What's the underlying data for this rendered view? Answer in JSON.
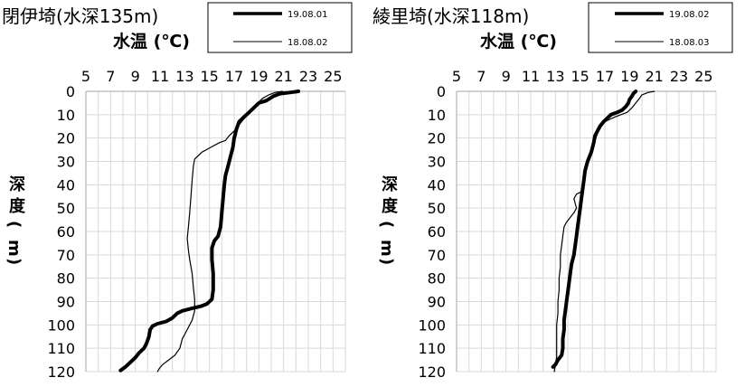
{
  "chart_data": [
    {
      "type": "line",
      "title": "閉伊埼(水深135m)",
      "xlabel": "水温 (℃)",
      "ylabel": "深度(m)",
      "xlim": [
        5,
        26
      ],
      "ylim": [
        0,
        120
      ],
      "y_reversed": true,
      "x_ticks": [
        5,
        7,
        9,
        11,
        13,
        15,
        17,
        19,
        21,
        23,
        25
      ],
      "y_ticks": [
        0,
        10,
        20,
        30,
        40,
        50,
        60,
        70,
        80,
        90,
        100,
        110,
        120
      ],
      "grid": true,
      "legend_position": "top-right",
      "series": [
        {
          "name": "19.08.01",
          "style": "thick",
          "points": [
            [
              22.2,
              0
            ],
            [
              21.5,
              0.5
            ],
            [
              20.7,
              1
            ],
            [
              20.2,
              2
            ],
            [
              19.9,
              3
            ],
            [
              19.6,
              4
            ],
            [
              19.0,
              5
            ],
            [
              18.6,
              7
            ],
            [
              18.2,
              9
            ],
            [
              17.8,
              11
            ],
            [
              17.4,
              13
            ],
            [
              17.2,
              16
            ],
            [
              17.0,
              20
            ],
            [
              16.9,
              24
            ],
            [
              16.7,
              28
            ],
            [
              16.5,
              32
            ],
            [
              16.3,
              36
            ],
            [
              16.2,
              40
            ],
            [
              16.1,
              46
            ],
            [
              16.0,
              52
            ],
            [
              15.9,
              58
            ],
            [
              15.7,
              62
            ],
            [
              15.4,
              64
            ],
            [
              15.2,
              67
            ],
            [
              15.2,
              72
            ],
            [
              15.3,
              78
            ],
            [
              15.3,
              85
            ],
            [
              15.2,
              89
            ],
            [
              14.8,
              91
            ],
            [
              14.3,
              92
            ],
            [
              13.5,
              93
            ],
            [
              12.8,
              94
            ],
            [
              12.4,
              95
            ],
            [
              12.0,
              97
            ],
            [
              11.5,
              98.5
            ],
            [
              10.8,
              99.5
            ],
            [
              10.4,
              100.5
            ],
            [
              10.2,
              102
            ],
            [
              10.1,
              105
            ],
            [
              9.9,
              108
            ],
            [
              9.7,
              110
            ],
            [
              9.3,
              112
            ],
            [
              9.0,
              114
            ],
            [
              8.6,
              116
            ],
            [
              8.2,
              118
            ],
            [
              7.8,
              119.5
            ]
          ]
        },
        {
          "name": "18.08.02",
          "style": "thin",
          "points": [
            [
              20.9,
              0
            ],
            [
              20.3,
              0.5
            ],
            [
              19.8,
              1.5
            ],
            [
              19.3,
              3
            ],
            [
              18.9,
              5
            ],
            [
              18.5,
              7
            ],
            [
              18.2,
              9
            ],
            [
              17.9,
              11
            ],
            [
              17.6,
              13
            ],
            [
              17.3,
              15
            ],
            [
              17.0,
              17
            ],
            [
              16.6,
              19
            ],
            [
              16.3,
              21
            ],
            [
              15.8,
              22
            ],
            [
              15.1,
              24
            ],
            [
              14.4,
              26
            ],
            [
              14.1,
              27.5
            ],
            [
              13.8,
              29
            ],
            [
              13.7,
              32
            ],
            [
              13.6,
              38
            ],
            [
              13.5,
              45
            ],
            [
              13.4,
              52
            ],
            [
              13.3,
              58
            ],
            [
              13.2,
              63
            ],
            [
              13.3,
              68
            ],
            [
              13.4,
              72
            ],
            [
              13.6,
              78
            ],
            [
              13.7,
              84
            ],
            [
              13.8,
              89
            ],
            [
              13.8,
              94
            ],
            [
              13.6,
              98
            ],
            [
              13.4,
              100
            ],
            [
              13.1,
              103
            ],
            [
              12.8,
              106
            ],
            [
              12.6,
              110
            ],
            [
              12.2,
              113
            ],
            [
              11.7,
              115
            ],
            [
              11.2,
              117
            ],
            [
              10.9,
              119
            ],
            [
              10.8,
              120
            ]
          ]
        }
      ]
    },
    {
      "type": "line",
      "title": "綾里埼(水深118m)",
      "xlabel": "水温 (℃)",
      "ylabel": "深度(m)",
      "xlim": [
        5,
        26
      ],
      "ylim": [
        0,
        120
      ],
      "y_reversed": true,
      "x_ticks": [
        5,
        7,
        9,
        11,
        13,
        15,
        17,
        19,
        21,
        23,
        25
      ],
      "y_ticks": [
        0,
        10,
        20,
        30,
        40,
        50,
        60,
        70,
        80,
        90,
        100,
        110,
        120
      ],
      "grid": true,
      "legend_position": "top-right",
      "series": [
        {
          "name": "19.08.02",
          "style": "thick",
          "points": [
            [
              19.5,
              0
            ],
            [
              19.3,
              1
            ],
            [
              19.2,
              2
            ],
            [
              19.0,
              3.5
            ],
            [
              18.9,
              5
            ],
            [
              18.7,
              6.5
            ],
            [
              18.4,
              8
            ],
            [
              18.0,
              9
            ],
            [
              17.5,
              10
            ],
            [
              17.2,
              11.5
            ],
            [
              16.9,
              13
            ],
            [
              16.6,
              15
            ],
            [
              16.4,
              17
            ],
            [
              16.2,
              19
            ],
            [
              16.1,
              22
            ],
            [
              15.9,
              26
            ],
            [
              15.6,
              30
            ],
            [
              15.4,
              34
            ],
            [
              15.3,
              38
            ],
            [
              15.2,
              42
            ],
            [
              15.1,
              46
            ],
            [
              15.0,
              50
            ],
            [
              14.9,
              54
            ],
            [
              14.8,
              58
            ],
            [
              14.7,
              62
            ],
            [
              14.6,
              66
            ],
            [
              14.5,
              70
            ],
            [
              14.3,
              74
            ],
            [
              14.2,
              78
            ],
            [
              14.1,
              82
            ],
            [
              14.0,
              86
            ],
            [
              13.9,
              90
            ],
            [
              13.8,
              94
            ],
            [
              13.7,
              98
            ],
            [
              13.7,
              102
            ],
            [
              13.6,
              106
            ],
            [
              13.6,
              110
            ],
            [
              13.5,
              113
            ],
            [
              13.2,
              115
            ],
            [
              13.0,
              117
            ],
            [
              12.8,
              118
            ]
          ]
        },
        {
          "name": "18.08.03",
          "style": "thin",
          "points": [
            [
              21.0,
              0
            ],
            [
              20.5,
              0.5
            ],
            [
              20.0,
              1.5
            ],
            [
              19.8,
              3
            ],
            [
              19.5,
              5
            ],
            [
              19.2,
              7
            ],
            [
              18.8,
              9
            ],
            [
              18.3,
              10
            ],
            [
              17.8,
              11
            ],
            [
              17.4,
              12
            ],
            [
              17.0,
              13
            ],
            [
              16.7,
              15
            ],
            [
              16.4,
              18
            ],
            [
              16.2,
              21
            ],
            [
              16.0,
              24
            ],
            [
              15.9,
              26
            ],
            [
              15.7,
              29
            ],
            [
              15.5,
              33
            ],
            [
              15.3,
              37
            ],
            [
              15.2,
              40
            ],
            [
              15.1,
              43
            ],
            [
              14.7,
              44
            ],
            [
              14.5,
              46
            ],
            [
              14.6,
              48
            ],
            [
              14.7,
              50
            ],
            [
              14.5,
              52
            ],
            [
              14.2,
              54
            ],
            [
              13.9,
              56
            ],
            [
              13.7,
              58
            ],
            [
              13.6,
              62
            ],
            [
              13.5,
              66
            ],
            [
              13.4,
              70
            ],
            [
              13.4,
              75
            ],
            [
              13.3,
              80
            ],
            [
              13.3,
              85
            ],
            [
              13.2,
              90
            ],
            [
              13.2,
              95
            ],
            [
              13.1,
              100
            ],
            [
              13.1,
              105
            ],
            [
              13.1,
              110
            ],
            [
              13.1,
              114
            ],
            [
              13.0,
              117
            ],
            [
              12.9,
              120
            ]
          ]
        }
      ]
    }
  ]
}
